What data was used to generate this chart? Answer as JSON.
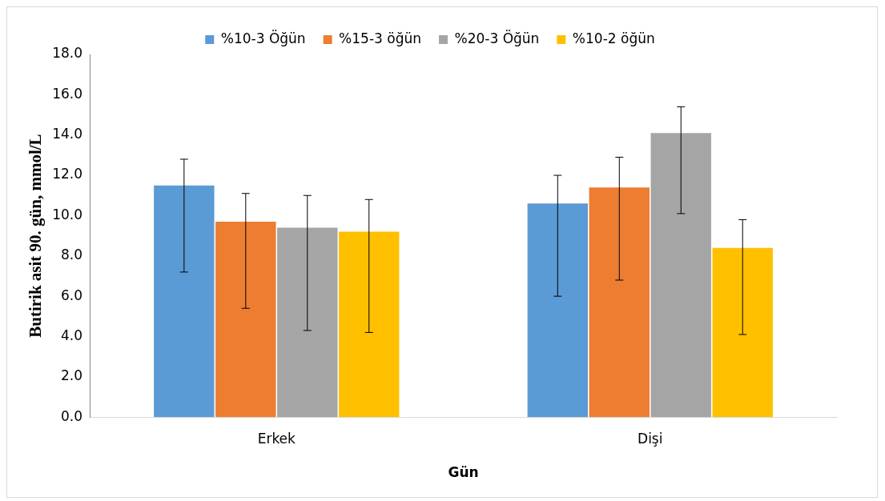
{
  "chart_data": {
    "type": "bar",
    "xlabel": "Gün",
    "ylabel": "Butirik asit 90. gün, mmol/L",
    "categories": [
      "Erkek",
      "Dişi"
    ],
    "series": [
      {
        "name": "%10-3 Öğün",
        "color": "#5b9bd5",
        "values": [
          11.5,
          10.6
        ],
        "errors": [
          [
            7.2,
            12.8
          ],
          [
            6.0,
            12.0
          ]
        ]
      },
      {
        "name": "%15-3 öğün",
        "color": "#ed7d31",
        "values": [
          9.7,
          11.4
        ],
        "errors": [
          [
            5.4,
            11.1
          ],
          [
            6.8,
            12.9
          ]
        ]
      },
      {
        "name": "%20-3 Öğün",
        "color": "#a5a5a5",
        "values": [
          9.4,
          14.1
        ],
        "errors": [
          [
            4.3,
            11.0
          ],
          [
            10.1,
            15.4
          ]
        ]
      },
      {
        "name": "%10-2 öğün",
        "color": "#ffc000",
        "values": [
          9.2,
          8.4
        ],
        "errors": [
          [
            4.2,
            10.8
          ],
          [
            4.1,
            9.8
          ]
        ]
      }
    ],
    "ylim": [
      0,
      18
    ],
    "yticks": [
      {
        "value": 0,
        "label": "0.0"
      },
      {
        "value": 2,
        "label": "2.0"
      },
      {
        "value": 4,
        "label": "4.0"
      },
      {
        "value": 6,
        "label": "6.0"
      },
      {
        "value": 8,
        "label": "8.0"
      },
      {
        "value": 10,
        "label": "10.0"
      },
      {
        "value": 12,
        "label": "12.0"
      },
      {
        "value": 14,
        "label": "14.0"
      },
      {
        "value": 16,
        "label": "16.0"
      },
      {
        "value": 18,
        "label": "18.0"
      }
    ],
    "grid": false,
    "legend": "top"
  }
}
